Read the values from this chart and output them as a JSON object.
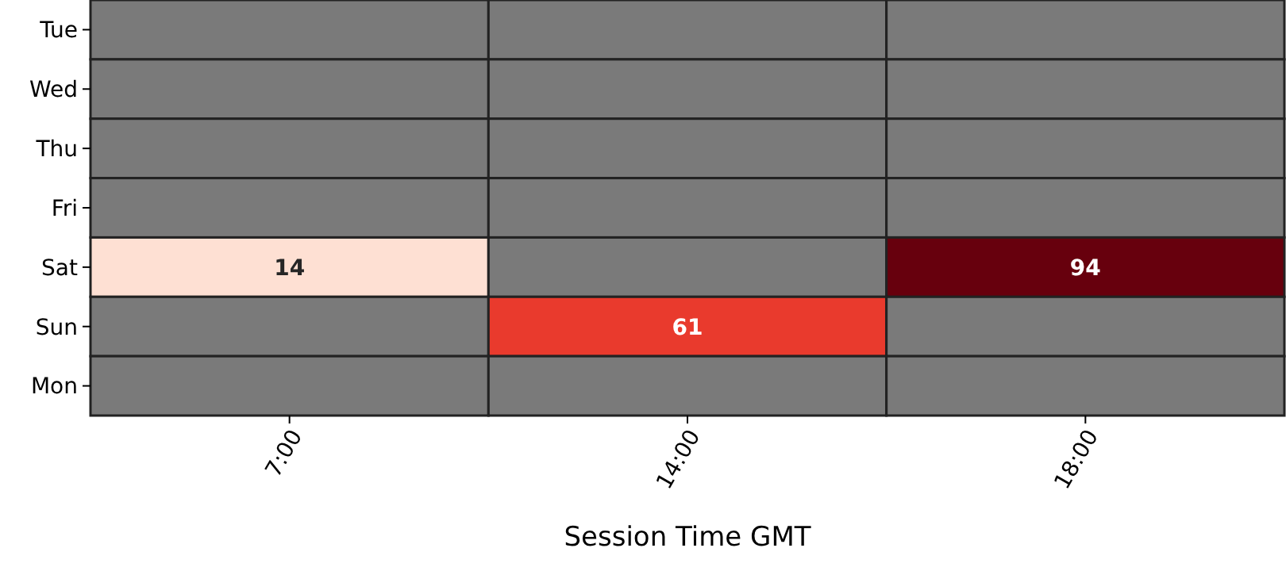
{
  "chart_data": {
    "type": "heatmap",
    "xlabel": "Session Time GMT",
    "categories": [
      "7:00",
      "14:00",
      "18:00"
    ],
    "y_categories": [
      "Tue",
      "Wed",
      "Thu",
      "Fri",
      "Sat",
      "Sun",
      "Mon"
    ],
    "cells": [
      [
        null,
        null,
        null
      ],
      [
        null,
        null,
        null
      ],
      [
        null,
        null,
        null
      ],
      [
        null,
        null,
        null
      ],
      [
        14,
        null,
        94
      ],
      [
        null,
        61,
        null
      ],
      [
        null,
        null,
        null
      ]
    ],
    "data_labels": true
  }
}
